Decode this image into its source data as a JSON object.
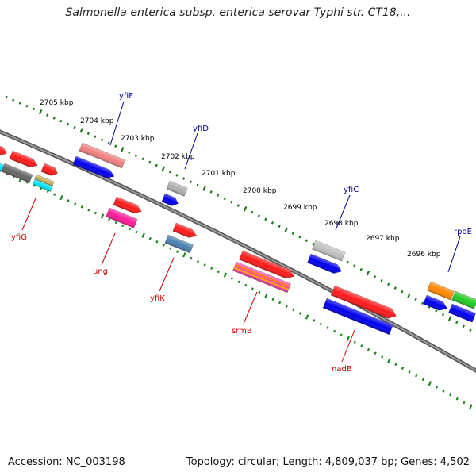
{
  "title": "Salmonella enterica subsp. enterica serovar Typhi str. CT18,...",
  "footer": {
    "accession": "Accession: NC_003198",
    "info": "Topology: circular; Length: 4,809,037 bp; Genes: 4,502"
  },
  "colors": {
    "backbone": "#808080",
    "tick_outer": "#1a7a1a",
    "tick_inner": "#1a8a1a",
    "label_top": "#00008b",
    "label_bottom": "#cc0000"
  },
  "kbp_labels": [
    "2705 kbp",
    "2704 kbp",
    "2703 kbp",
    "2702 kbp",
    "2701 kbp",
    "2700 kbp",
    "2699 kbp",
    "2698 kbp",
    "2697 kbp",
    "2696 kbp"
  ],
  "gene_labels_top": [
    "yfiF",
    "yfiD",
    "yfiC",
    "rpoE"
  ],
  "gene_labels_bottom": [
    "yfiG",
    "ung",
    "yfiK",
    "srmB",
    "nadB"
  ],
  "features": [
    {
      "name": "f1",
      "color": "#ff1a1a"
    },
    {
      "name": "f2",
      "color": "#ff1a1a"
    },
    {
      "name": "f3",
      "color": "#ff1a1a"
    },
    {
      "name": "f4",
      "color": "#00e5ff"
    },
    {
      "name": "f5",
      "color": "#666666"
    },
    {
      "name": "f6",
      "color": "#c8b560"
    },
    {
      "name": "f7",
      "color": "#00e5ff"
    },
    {
      "name": "f8",
      "color": "#f08080"
    },
    {
      "name": "f9",
      "color": "#0000ee"
    },
    {
      "name": "f10",
      "color": "#b0b0b0"
    },
    {
      "name": "f11",
      "color": "#0000ee"
    },
    {
      "name": "f12",
      "color": "#ff1a1a"
    },
    {
      "name": "f13",
      "color": "#ff1a9a"
    },
    {
      "name": "f14",
      "color": "#ff1a1a"
    },
    {
      "name": "f15",
      "color": "#4a7fb0"
    },
    {
      "name": "f16",
      "color": "#ff1a1a"
    },
    {
      "name": "f17",
      "color": "#ff44aa"
    },
    {
      "name": "f18",
      "color": "#c0c0c0"
    },
    {
      "name": "f19",
      "color": "#0000ee"
    },
    {
      "name": "f20",
      "color": "#ff1a1a"
    },
    {
      "name": "f21",
      "color": "#0000ee"
    },
    {
      "name": "f22",
      "color": "#ff8800"
    },
    {
      "name": "f23",
      "color": "#0000ee"
    },
    {
      "name": "f24",
      "color": "#22cc22"
    },
    {
      "name": "f25",
      "color": "#0000ee"
    }
  ]
}
